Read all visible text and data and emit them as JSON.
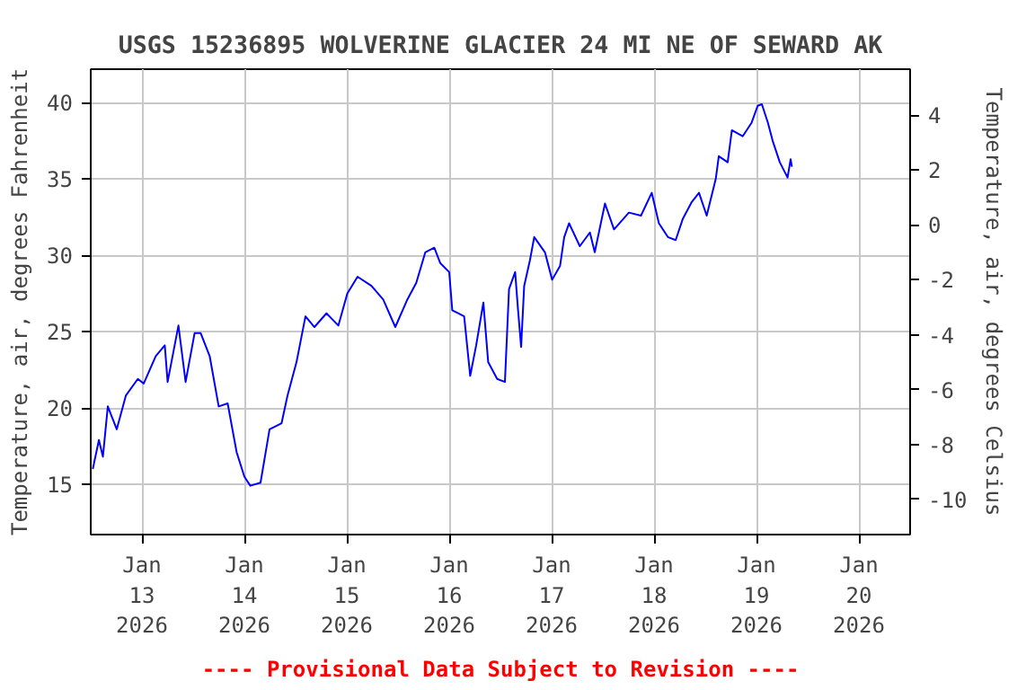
{
  "chart_data": {
    "type": "line",
    "title": "USGS 15236895 WOLVERINE GLACIER 24 MI NE OF SEWARD AK",
    "ylabel": "Temperature, air, degrees Fahrenheit",
    "y2label": "Temperature, air, degrees Celsius",
    "annotations": [
      "---- Provisional Data Subject to Revision ----"
    ],
    "xlim": [
      "2026-01-12T12:00",
      "2026-01-20T12:00"
    ],
    "xticks": [
      {
        "value": "2026-01-13",
        "label": "Jan\n13\n2026"
      },
      {
        "value": "2026-01-14",
        "label": "Jan\n14\n2026"
      },
      {
        "value": "2026-01-15",
        "label": "Jan\n15\n2026"
      },
      {
        "value": "2026-01-16",
        "label": "Jan\n16\n2026"
      },
      {
        "value": "2026-01-17",
        "label": "Jan\n17\n2026"
      },
      {
        "value": "2026-01-18",
        "label": "Jan\n18\n2026"
      },
      {
        "value": "2026-01-19",
        "label": "Jan\n19\n2026"
      },
      {
        "value": "2026-01-20",
        "label": "Jan\n20\n2026"
      }
    ],
    "ylim": [
      11.7,
      42.2
    ],
    "yticks": [
      15,
      20,
      25,
      30,
      35,
      40
    ],
    "y2lim": [
      -11.28,
      5.67
    ],
    "y2ticks": [
      -10,
      -8,
      -6,
      -4,
      -2,
      0,
      2,
      4
    ],
    "grid": true,
    "line_style": "solid",
    "series": [
      {
        "color": "#0000ff",
        "x": [
          "2026-01-12T12:29",
          "2026-01-12T13:55",
          "2026-01-12T14:51",
          "2026-01-12T16:00",
          "2026-01-12T18:06",
          "2026-01-12T20:13",
          "2026-01-12T23:02",
          "2026-01-13T00:25",
          "2026-01-13T03:14",
          "2026-01-13T05:21",
          "2026-01-13T06:01",
          "2026-01-13T08:33",
          "2026-01-13T10:14",
          "2026-01-13T12:20",
          "2026-01-13T13:46",
          "2026-01-13T15:52",
          "2026-01-13T17:59",
          "2026-01-13T20:05",
          "2026-01-13T22:11",
          "2026-01-14T00:00",
          "2026-01-14T01:23",
          "2026-01-14T03:47",
          "2026-01-14T05:54",
          "2026-01-14T08:43",
          "2026-01-14T10:06",
          "2026-01-14T12:13",
          "2026-01-14T14:19",
          "2026-01-14T16:25",
          "2026-01-14T19:14",
          "2026-01-14T22:02",
          "2026-01-15T00:07",
          "2026-01-15T02:31",
          "2026-01-15T05:46",
          "2026-01-15T08:32",
          "2026-01-15T11:22",
          "2026-01-15T14:11",
          "2026-01-15T16:17",
          "2026-01-15T18:24",
          "2026-01-15T20:30",
          "2026-01-15T21:53",
          "2026-01-16T00:00",
          "2026-01-16T00:43",
          "2026-01-16T03:30",
          "2026-01-16T04:55",
          "2026-01-16T06:19",
          "2026-01-16T08:00",
          "2026-01-16T09:08",
          "2026-01-16T11:14",
          "2026-01-16T13:03",
          "2026-01-16T14:01",
          "2026-01-16T15:27",
          "2026-01-16T16:08",
          "2026-01-16T16:51",
          "2026-01-16T17:34",
          "2026-01-16T18:56",
          "2026-01-16T19:55",
          "2026-01-16T22:26",
          "2026-01-17T00:07",
          "2026-01-17T01:58",
          "2026-01-17T02:57",
          "2026-01-17T04:05",
          "2026-01-17T06:36",
          "2026-01-17T08:58",
          "2026-01-17T10:06",
          "2026-01-17T12:30",
          "2026-01-17T14:37",
          "2026-01-17T18:06",
          "2026-01-17T20:56",
          "2026-01-17T23:27",
          "2026-01-18T01:08",
          "2026-01-18T03:14",
          "2026-01-18T05:04",
          "2026-01-18T06:45",
          "2026-01-18T08:50",
          "2026-01-18T10:32",
          "2026-01-18T12:20",
          "2026-01-18T14:27",
          "2026-01-18T15:10",
          "2026-01-18T17:15",
          "2026-01-18T18:14",
          "2026-01-18T20:46",
          "2026-01-18T22:52",
          "2026-01-19T00:17",
          "2026-01-19T01:16",
          "2026-01-19T02:40",
          "2026-01-19T03:48",
          "2026-01-19T05:28",
          "2026-01-19T07:17",
          "2026-01-19T08:00",
          "2026-01-19T08:18"
        ],
        "values": [
          16.0,
          17.9,
          16.8,
          20.1,
          18.6,
          20.8,
          21.9,
          21.6,
          23.4,
          24.1,
          21.7,
          25.4,
          21.7,
          24.9,
          24.9,
          23.4,
          20.1,
          20.3,
          17.1,
          15.5,
          14.9,
          15.1,
          18.6,
          19.0,
          20.8,
          23.0,
          26.0,
          25.3,
          26.2,
          25.4,
          27.5,
          28.6,
          28.0,
          27.1,
          25.3,
          27.1,
          28.2,
          30.2,
          30.5,
          29.5,
          28.9,
          26.4,
          26.0,
          22.1,
          24.1,
          26.9,
          23.0,
          21.9,
          21.7,
          27.8,
          28.9,
          26.4,
          24.0,
          28.0,
          29.7,
          31.2,
          30.2,
          28.4,
          29.3,
          31.2,
          32.1,
          30.6,
          31.5,
          30.2,
          33.4,
          31.7,
          32.8,
          32.6,
          34.1,
          32.1,
          31.2,
          31.0,
          32.4,
          33.5,
          34.1,
          32.6,
          35.0,
          36.5,
          36.1,
          38.2,
          37.8,
          38.7,
          39.8,
          39.9,
          38.7,
          37.5,
          36.1,
          35.1,
          36.3,
          35.8
        ]
      }
    ]
  }
}
